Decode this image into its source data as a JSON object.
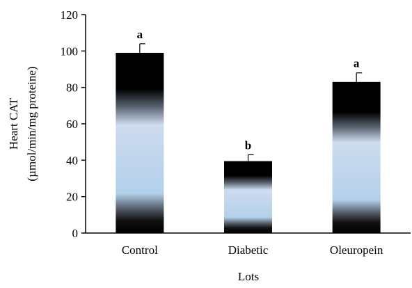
{
  "chart_data": {
    "type": "bar",
    "title": "",
    "xlabel": "Lots",
    "ylabel_line1": "Heart CAT",
    "ylabel_line2": "(µmol/min/mg proteine)",
    "categories": [
      "Control",
      "Diabetic",
      "Oleuropein"
    ],
    "values": [
      99,
      39.5,
      83
    ],
    "errors": [
      5,
      3.5,
      5
    ],
    "significance": [
      "a",
      "b",
      "a"
    ],
    "ylim": [
      0,
      120
    ],
    "yticks": [
      "0",
      "20",
      "40",
      "60",
      "80",
      "100",
      "120"
    ],
    "grid": false,
    "legend": "none",
    "colors": {
      "bar_dark": "#000000",
      "bar_mid": "#5a6470",
      "bar_light_top": "#cfdcef",
      "bar_light_bottom": "#b3d1ec",
      "axis": "#000000"
    }
  }
}
